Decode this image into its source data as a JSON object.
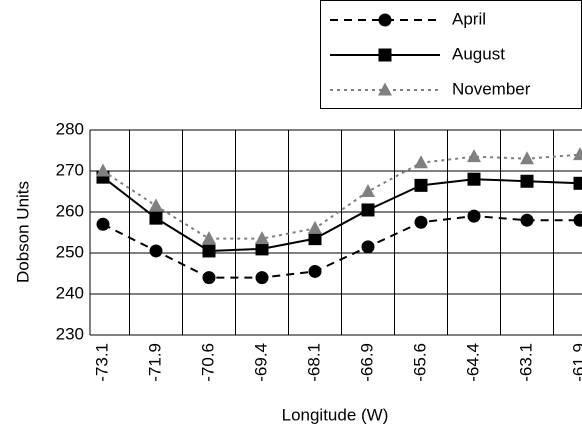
{
  "chart_data": {
    "type": "line",
    "x_label": "Longitude (W)",
    "y_label": "Dobson Units",
    "categories": [
      "-73.1",
      "-71.9",
      "-70.6",
      "-69.4",
      "-68.1",
      "-66.9",
      "-65.6",
      "-64.4",
      "-63.1",
      "-61.9"
    ],
    "series": [
      {
        "name": "April",
        "color": "#000000",
        "line_style": "dashed",
        "marker": "circle",
        "values": [
          257,
          250.5,
          244,
          244,
          245.5,
          251.5,
          257.5,
          259,
          258,
          258
        ]
      },
      {
        "name": "August",
        "color": "#000000",
        "line_style": "solid",
        "marker": "square",
        "values": [
          268.5,
          258.5,
          250.5,
          251,
          253.5,
          260.5,
          266.5,
          268,
          267.5,
          267
        ]
      },
      {
        "name": "November",
        "color": "#808080",
        "line_style": "dotted",
        "marker": "triangle",
        "values": [
          270,
          261.5,
          253.5,
          253.5,
          256,
          265,
          272,
          273.5,
          273,
          274
        ]
      }
    ],
    "ylim": [
      230,
      280
    ],
    "yticks": [
      230,
      240,
      250,
      260,
      270,
      280
    ],
    "grid": true
  }
}
